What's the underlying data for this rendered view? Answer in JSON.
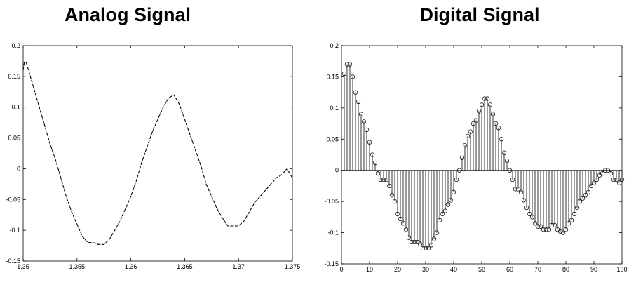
{
  "chart_data": [
    {
      "type": "line",
      "title": "Analog Signal",
      "xlim": [
        1.35,
        1.375
      ],
      "ylim": [
        -0.15,
        0.2
      ],
      "xticks": [
        "1.35",
        "1.355",
        "1.36",
        "1.365",
        "1.37",
        "1.375"
      ],
      "yticks": [
        "-0.15",
        "-0.1",
        "-0.05",
        "0",
        "0.05",
        "0.1",
        "0.15",
        "0.2"
      ],
      "series": [
        {
          "x": [
            1.35,
            1.3501,
            1.3502,
            1.3503,
            1.3505,
            1.351,
            1.3515,
            1.352,
            1.3525,
            1.353,
            1.3535,
            1.354,
            1.3545,
            1.355,
            1.3555,
            1.356,
            1.3565,
            1.357,
            1.3575,
            1.358,
            1.3585,
            1.359,
            1.3595,
            1.36,
            1.3605,
            1.361,
            1.3615,
            1.362,
            1.3625,
            1.363,
            1.3635,
            1.364,
            1.3645,
            1.365,
            1.3655,
            1.366,
            1.3665,
            1.367,
            1.3675,
            1.368,
            1.3685,
            1.369,
            1.3695,
            1.37,
            1.3705,
            1.371,
            1.3715,
            1.372,
            1.3725,
            1.373,
            1.3735,
            1.374,
            1.3745,
            1.375
          ],
          "y": [
            0.16,
            0.172,
            0.172,
            0.172,
            0.16,
            0.13,
            0.1,
            0.07,
            0.04,
            0.015,
            -0.015,
            -0.045,
            -0.07,
            -0.09,
            -0.11,
            -0.12,
            -0.12,
            -0.123,
            -0.123,
            -0.115,
            -0.1,
            -0.085,
            -0.065,
            -0.045,
            -0.02,
            0.01,
            0.035,
            0.06,
            0.08,
            0.1,
            0.115,
            0.12,
            0.105,
            0.08,
            0.055,
            0.03,
            0.005,
            -0.025,
            -0.045,
            -0.065,
            -0.08,
            -0.093,
            -0.093,
            -0.093,
            -0.085,
            -0.07,
            -0.055,
            -0.045,
            -0.035,
            -0.025,
            -0.015,
            -0.01,
            0.0,
            -0.015
          ]
        }
      ]
    },
    {
      "type": "stem",
      "title": "Digital Signal",
      "xlim": [
        0,
        100
      ],
      "ylim": [
        -0.15,
        0.2
      ],
      "xticks": [
        "0",
        "10",
        "20",
        "30",
        "40",
        "50",
        "60",
        "70",
        "80",
        "90",
        "100"
      ],
      "yticks": [
        "-0.15",
        "-0.1",
        "-0.05",
        "0",
        "0.05",
        "0.1",
        "0.15",
        "0.2"
      ],
      "series": [
        {
          "x": [
            1,
            2,
            3,
            4,
            5,
            6,
            7,
            8,
            9,
            10,
            11,
            12,
            13,
            14,
            15,
            16,
            17,
            18,
            19,
            20,
            21,
            22,
            23,
            24,
            25,
            26,
            27,
            28,
            29,
            30,
            31,
            32,
            33,
            34,
            35,
            36,
            37,
            38,
            39,
            40,
            41,
            42,
            43,
            44,
            45,
            46,
            47,
            48,
            49,
            50,
            51,
            52,
            53,
            54,
            55,
            56,
            57,
            58,
            59,
            60,
            61,
            62,
            63,
            64,
            65,
            66,
            67,
            68,
            69,
            70,
            71,
            72,
            73,
            74,
            75,
            76,
            77,
            78,
            79,
            80,
            81,
            82,
            83,
            84,
            85,
            86,
            87,
            88,
            89,
            90,
            91,
            92,
            93,
            94,
            95,
            96,
            97,
            98,
            99,
            100
          ],
          "y": [
            0.155,
            0.17,
            0.17,
            0.15,
            0.125,
            0.11,
            0.09,
            0.078,
            0.065,
            0.045,
            0.025,
            0.012,
            -0.005,
            -0.015,
            -0.015,
            -0.015,
            -0.025,
            -0.04,
            -0.05,
            -0.07,
            -0.078,
            -0.085,
            -0.095,
            -0.108,
            -0.115,
            -0.115,
            -0.115,
            -0.118,
            -0.125,
            -0.125,
            -0.125,
            -0.12,
            -0.11,
            -0.1,
            -0.08,
            -0.07,
            -0.065,
            -0.055,
            -0.048,
            -0.035,
            -0.015,
            0.0,
            0.02,
            0.04,
            0.055,
            0.062,
            0.075,
            0.08,
            0.095,
            0.105,
            0.115,
            0.115,
            0.105,
            0.09,
            0.075,
            0.068,
            0.05,
            0.028,
            0.015,
            0.0,
            -0.015,
            -0.03,
            -0.03,
            -0.035,
            -0.048,
            -0.06,
            -0.07,
            -0.075,
            -0.085,
            -0.09,
            -0.09,
            -0.095,
            -0.095,
            -0.095,
            -0.088,
            -0.088,
            -0.095,
            -0.098,
            -0.1,
            -0.095,
            -0.085,
            -0.08,
            -0.07,
            -0.06,
            -0.05,
            -0.045,
            -0.04,
            -0.035,
            -0.025,
            -0.02,
            -0.015,
            -0.008,
            -0.005,
            0.0,
            0.0,
            -0.005,
            -0.015,
            -0.015,
            -0.02,
            -0.015
          ]
        }
      ]
    }
  ]
}
